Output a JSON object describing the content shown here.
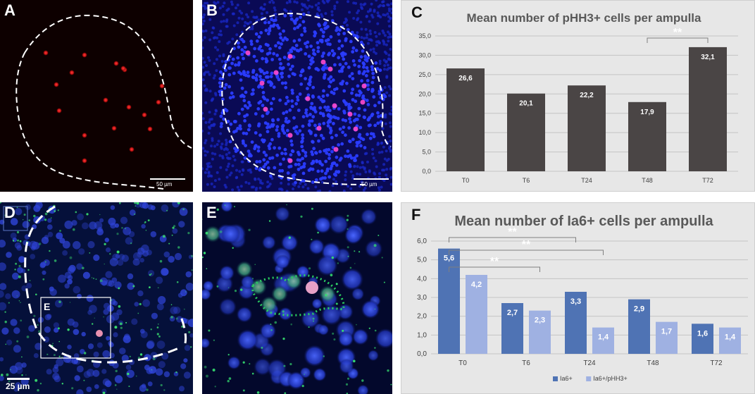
{
  "panels": {
    "A": {
      "label": "A",
      "scale": "50 µm"
    },
    "B": {
      "label": "B",
      "scale": "50 µm"
    },
    "C": {
      "label": "C"
    },
    "D": {
      "label": "D",
      "scale": "25 µm",
      "inset_label": "E"
    },
    "E": {
      "label": "E"
    },
    "F": {
      "label": "F"
    }
  },
  "colors": {
    "bar_dark": "#4a4545",
    "bar_ia6": "#4f73b4",
    "bar_ia6_phh3": "#9fb1e2",
    "dapi_blue": "#1e2ee0",
    "phh3_red": "#ff2a2a",
    "ia6_green": "#30c060"
  },
  "chart_data": [
    {
      "type": "bar",
      "panel": "C",
      "title": "Mean number of pHH3+ cells per ampulla",
      "categories": [
        "T0",
        "T6",
        "T24",
        "T48",
        "T72"
      ],
      "values": [
        26.6,
        20.1,
        22.2,
        17.9,
        32.1
      ],
      "value_labels": [
        "26,6",
        "20,1",
        "22,2",
        "17,9",
        "32,1"
      ],
      "ylim": [
        0,
        35
      ],
      "yticks": [
        "0,0",
        "5,0",
        "10,0",
        "15,0",
        "20,0",
        "25,0",
        "30,0",
        "35,0"
      ],
      "grid": true,
      "significance": [
        {
          "from": 3,
          "to": 4,
          "label": "**"
        }
      ]
    },
    {
      "type": "bar",
      "panel": "F",
      "title": "Mean number of Ia6+ cells per ampulla",
      "categories": [
        "T0",
        "T6",
        "T24",
        "T48",
        "T72"
      ],
      "series": [
        {
          "name": "Ia6+",
          "values": [
            5.6,
            2.7,
            3.3,
            2.9,
            1.6
          ],
          "value_labels": [
            "5,6",
            "2,7",
            "3,3",
            "2,9",
            "1,6"
          ]
        },
        {
          "name": "Ia6+/pHH3+",
          "values": [
            4.2,
            2.3,
            1.4,
            1.7,
            1.4
          ],
          "value_labels": [
            "4,2",
            "2,3",
            "1,4",
            "1,7",
            "1,4"
          ]
        }
      ],
      "ylim": [
        0,
        6
      ],
      "yticks": [
        "0,0",
        "1,0",
        "2,0",
        "3,0",
        "4,0",
        "5,0",
        "6,0"
      ],
      "grid": true,
      "legend_position": "bottom",
      "significance": [
        {
          "from": 0,
          "to": 4,
          "label": "**"
        },
        {
          "from": 0,
          "to": 5,
          "label": "**"
        },
        {
          "from": 0,
          "to": 3,
          "label": "**"
        }
      ]
    }
  ]
}
